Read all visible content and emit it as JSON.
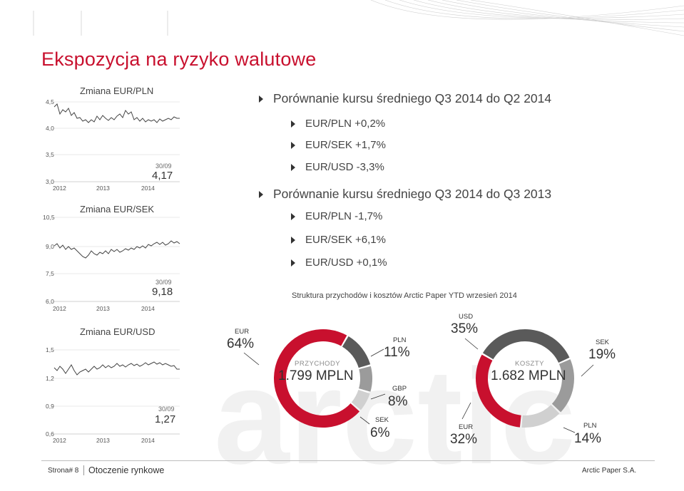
{
  "slide": {
    "title": "Ekspozycja na ryzyko walutowe"
  },
  "fx_charts": [
    {
      "title": "Zmiana EUR/PLN",
      "y_ticks": [
        "4,5",
        "4,0",
        "3,5",
        "3,0"
      ],
      "x_ticks": [
        "2012",
        "2013",
        "2014"
      ],
      "date": "30/09",
      "last_value": "4,17"
    },
    {
      "title": "Zmiana EUR/SEK",
      "y_ticks": [
        "10,5",
        "9,0",
        "7,5",
        "6,0"
      ],
      "x_ticks": [
        "2012",
        "2013",
        "2014"
      ],
      "date": "30/09",
      "last_value": "9,18"
    },
    {
      "title": "Zmiana EUR/USD",
      "y_ticks": [
        "1,5",
        "1,2",
        "0,9",
        "0,6"
      ],
      "x_ticks": [
        "2012",
        "2013",
        "2014"
      ],
      "date": "30/09",
      "last_value": "1,27"
    }
  ],
  "comparison": {
    "heading_q2": "Porównanie kursu średniego Q3 2014 do Q2 2014",
    "items_q2": [
      "EUR/PLN +0,2%",
      "EUR/SEK +1,7%",
      "EUR/USD -3,3%"
    ],
    "heading_q3": "Porównanie kursu średniego Q3 2014 do Q3 2013",
    "items_q3": [
      "EUR/PLN -1,7%",
      "EUR/SEK +6,1%",
      "EUR/USD +0,1%"
    ]
  },
  "structure_caption": "Struktura przychodów i kosztów Arctic Paper YTD wrzesień 2014",
  "revenue": {
    "center_label": "PRZYCHODY",
    "center_value": "1.799 MPLN",
    "segments": [
      {
        "name": "EUR",
        "value": "64%",
        "share": 64,
        "color": "#c8102e"
      },
      {
        "name": "PLN",
        "value": "11%",
        "share": 11,
        "color": "#5a5a5a"
      },
      {
        "name": "GBP",
        "value": "8%",
        "share": 8,
        "color": "#9b9b9b"
      },
      {
        "name": "SEK",
        "value": "6%",
        "share": 6,
        "color": "#d0d0d0"
      }
    ]
  },
  "costs": {
    "center_label": "KOSZTY",
    "center_value": "1.682 MPLN",
    "segments": [
      {
        "name": "USD",
        "value": "35%",
        "share": 35,
        "color": "#5a5a5a"
      },
      {
        "name": "SEK",
        "value": "19%",
        "share": 19,
        "color": "#9b9b9b"
      },
      {
        "name": "PLN",
        "value": "14%",
        "share": 14,
        "color": "#d0d0d0"
      },
      {
        "name": "EUR",
        "value": "32%",
        "share": 32,
        "color": "#c8102e"
      }
    ]
  },
  "footer": {
    "page_label": "Strona# 8",
    "section": "Otoczenie rynkowe",
    "company": "Arctic Paper S.A."
  }
}
